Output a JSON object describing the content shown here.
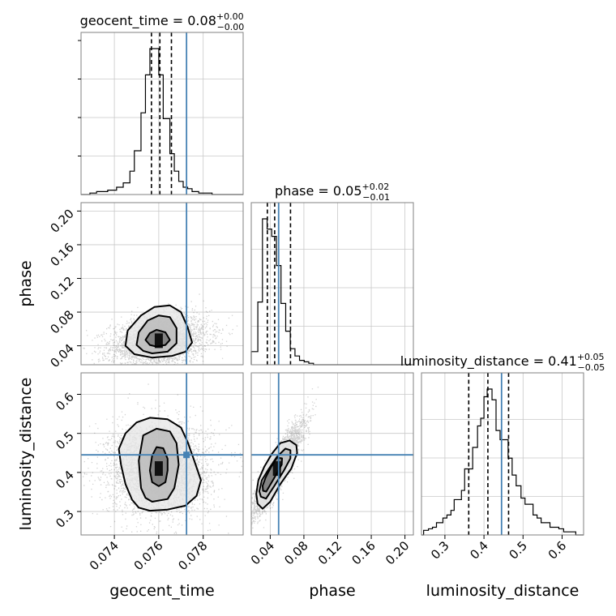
{
  "chart_data": {
    "type": "corner",
    "parameters": [
      "geocent_time",
      "phase",
      "luminosity_distance"
    ],
    "truths": {
      "geocent_time": 0.07725,
      "phase": 0.05,
      "luminosity_distance": 0.445
    },
    "truth_color": "#4682b4",
    "titles": {
      "geocent_time": {
        "prefix": "geocent_time = 0.08",
        "plus": "+0.00",
        "minus": "−0.00"
      },
      "phase": {
        "prefix": "phase = 0.05",
        "plus": "+0.02",
        "minus": "−0.01"
      },
      "luminosity_distance": {
        "prefix": "luminosity_distance = 0.41",
        "plus": "+0.05",
        "minus": "−0.05"
      }
    },
    "axes": {
      "geocent_time": {
        "range": [
          0.0725,
          0.0798
        ],
        "ticks": [
          0.074,
          0.076,
          0.078
        ],
        "tick_labels": [
          "0.074",
          "0.076",
          "0.078"
        ]
      },
      "phase": {
        "range": [
          0.0175,
          0.21
        ],
        "ticks": [
          0.04,
          0.08,
          0.12,
          0.16,
          0.2
        ],
        "tick_labels": [
          "0.04",
          "0.08",
          "0.12",
          "0.16",
          "0.20"
        ]
      },
      "luminosity_distance": {
        "range": [
          0.24,
          0.655
        ],
        "ticks": [
          0.3,
          0.4,
          0.5,
          0.6
        ],
        "tick_labels": [
          "0.3",
          "0.4",
          "0.5",
          "0.6"
        ]
      }
    },
    "histograms": {
      "geocent_time": {
        "bin_edges": [
          0.0725,
          0.0729,
          0.0732,
          0.0737,
          0.0741,
          0.0744,
          0.0747,
          0.0749,
          0.0752,
          0.0754,
          0.0756,
          0.0758,
          0.076,
          0.0762,
          0.0765,
          0.0767,
          0.0769,
          0.0771,
          0.0773,
          0.0775,
          0.0778,
          0.0781,
          0.0784,
          0.0788,
          0.0792,
          0.0798
        ],
        "counts": [
          0,
          1,
          2,
          3,
          5,
          8,
          16,
          30,
          56,
          82,
          100,
          100,
          82,
          52,
          28,
          16,
          9,
          5,
          4,
          2,
          1,
          1,
          0,
          0,
          0
        ],
        "quantiles": [
          0.07567,
          0.07605,
          0.07657
        ]
      },
      "phase": {
        "bin_edges": [
          0.0175,
          0.0253,
          0.0308,
          0.0363,
          0.0418,
          0.0474,
          0.0528,
          0.0584,
          0.0638,
          0.0694,
          0.0748,
          0.0804,
          0.0858,
          0.0914,
          0.0968,
          0.1025,
          0.1078,
          0.1133,
          0.1188,
          0.1243,
          0.1298,
          0.21
        ],
        "counts": [
          9,
          43,
          100,
          93,
          88,
          68,
          42,
          23,
          11,
          6,
          3,
          2,
          1,
          0,
          0,
          0,
          0,
          0,
          0,
          0,
          0
        ],
        "quantiles": [
          0.0366,
          0.0453,
          0.0641
        ]
      },
      "luminosity_distance": {
        "bin_edges": [
          0.24,
          0.2455,
          0.2578,
          0.2681,
          0.2784,
          0.2866,
          0.2949,
          0.3052,
          0.3155,
          0.3237,
          0.332,
          0.3423,
          0.3505,
          0.3608,
          0.3711,
          0.3835,
          0.3917,
          0.4,
          0.4082,
          0.4206,
          0.4309,
          0.4412,
          0.4515,
          0.4618,
          0.4721,
          0.4824,
          0.4948,
          0.5051,
          0.5154,
          0.5257,
          0.536,
          0.5463,
          0.5566,
          0.569,
          0.5793,
          0.5917,
          0.604,
          0.635,
          0.655
        ],
        "counts": [
          0,
          3,
          4,
          5,
          8,
          8,
          11,
          13,
          16,
          23,
          23,
          29,
          43,
          43,
          57,
          71,
          76,
          90,
          95,
          88,
          68,
          62,
          62,
          50,
          39,
          32,
          24,
          20,
          20,
          13,
          11,
          8,
          8,
          5,
          5,
          4,
          2,
          0
        ],
        "quantiles": [
          0.361,
          0.41,
          0.463
        ]
      }
    },
    "joint": [
      {
        "x": "geocent_time",
        "y": "phase",
        "mean": [
          0.076,
          0.046
        ],
        "sd": [
          0.00095,
          0.013
        ],
        "corr": 0.25,
        "contours": [
          [
            [
              0.0759,
              0.039
            ],
            [
              0.0763,
              0.041
            ],
            [
              0.0765,
              0.047
            ],
            [
              0.0763,
              0.056
            ],
            [
              0.0759,
              0.059
            ],
            [
              0.0756,
              0.055
            ],
            [
              0.0754,
              0.047
            ],
            [
              0.0756,
              0.041
            ]
          ],
          [
            [
              0.0757,
              0.031
            ],
            [
              0.0764,
              0.033
            ],
            [
              0.0768,
              0.043
            ],
            [
              0.0768,
              0.061
            ],
            [
              0.0765,
              0.074
            ],
            [
              0.076,
              0.076
            ],
            [
              0.0755,
              0.07
            ],
            [
              0.0751,
              0.056
            ],
            [
              0.075,
              0.041
            ],
            [
              0.0753,
              0.034
            ]
          ],
          [
            [
              0.0757,
              0.026
            ],
            [
              0.0766,
              0.028
            ],
            [
              0.0772,
              0.033
            ],
            [
              0.0775,
              0.044
            ],
            [
              0.0773,
              0.062
            ],
            [
              0.077,
              0.08
            ],
            [
              0.0765,
              0.088
            ],
            [
              0.0758,
              0.086
            ],
            [
              0.0752,
              0.076
            ],
            [
              0.0746,
              0.058
            ],
            [
              0.0745,
              0.04
            ],
            [
              0.0749,
              0.03
            ]
          ]
        ]
      },
      {
        "x": "geocent_time",
        "y": "luminosity_distance",
        "mean": [
          0.076,
          0.41
        ],
        "sd": [
          0.001,
          0.05
        ],
        "corr": 0.0,
        "contours": [
          [
            [
              0.076,
              0.365
            ],
            [
              0.0763,
              0.375
            ],
            [
              0.0764,
              0.405
            ],
            [
              0.0764,
              0.435
            ],
            [
              0.0762,
              0.462
            ],
            [
              0.0759,
              0.465
            ],
            [
              0.0757,
              0.443
            ],
            [
              0.0756,
              0.405
            ],
            [
              0.0757,
              0.375
            ]
          ],
          [
            [
              0.0757,
              0.325
            ],
            [
              0.0764,
              0.332
            ],
            [
              0.0767,
              0.36
            ],
            [
              0.0769,
              0.42
            ],
            [
              0.0768,
              0.475
            ],
            [
              0.0765,
              0.505
            ],
            [
              0.0759,
              0.512
            ],
            [
              0.0753,
              0.495
            ],
            [
              0.0751,
              0.43
            ],
            [
              0.0752,
              0.36
            ],
            [
              0.0754,
              0.335
            ]
          ],
          [
            [
              0.0756,
              0.302
            ],
            [
              0.0764,
              0.305
            ],
            [
              0.0772,
              0.315
            ],
            [
              0.0777,
              0.34
            ],
            [
              0.0779,
              0.38
            ],
            [
              0.0776,
              0.43
            ],
            [
              0.0773,
              0.478
            ],
            [
              0.077,
              0.515
            ],
            [
              0.0764,
              0.536
            ],
            [
              0.0756,
              0.54
            ],
            [
              0.075,
              0.528
            ],
            [
              0.0745,
              0.5
            ],
            [
              0.0742,
              0.46
            ],
            [
              0.0743,
              0.42
            ],
            [
              0.0745,
              0.37
            ],
            [
              0.0748,
              0.33
            ],
            [
              0.0751,
              0.31
            ]
          ]
        ]
      },
      {
        "x": "phase",
        "y": "luminosity_distance",
        "mean": [
          0.048,
          0.41
        ],
        "sd": [
          0.013,
          0.05
        ],
        "corr": 0.9,
        "contours": [
          [
            [
              0.0315,
              0.353
            ],
            [
              0.0353,
              0.351
            ],
            [
              0.044,
              0.383
            ],
            [
              0.0537,
              0.42
            ],
            [
              0.0541,
              0.436
            ],
            [
              0.0479,
              0.438
            ],
            [
              0.0411,
              0.414
            ],
            [
              0.0345,
              0.387
            ],
            [
              0.031,
              0.366
            ]
          ],
          [
            [
              0.029,
              0.338
            ],
            [
              0.035,
              0.333
            ],
            [
              0.045,
              0.366
            ],
            [
              0.056,
              0.404
            ],
            [
              0.064,
              0.436
            ],
            [
              0.064,
              0.457
            ],
            [
              0.058,
              0.461
            ],
            [
              0.048,
              0.44
            ],
            [
              0.038,
              0.408
            ],
            [
              0.03,
              0.38
            ],
            [
              0.027,
              0.352
            ]
          ],
          [
            [
              0.025,
              0.32
            ],
            [
              0.031,
              0.307
            ],
            [
              0.04,
              0.325
            ],
            [
              0.052,
              0.37
            ],
            [
              0.065,
              0.41
            ],
            [
              0.072,
              0.45
            ],
            [
              0.071,
              0.47
            ],
            [
              0.063,
              0.482
            ],
            [
              0.052,
              0.475
            ],
            [
              0.042,
              0.448
            ],
            [
              0.033,
              0.415
            ],
            [
              0.026,
              0.38
            ],
            [
              0.0235,
              0.345
            ]
          ]
        ]
      }
    ],
    "grid": true,
    "samples_per_panel": 3500
  }
}
